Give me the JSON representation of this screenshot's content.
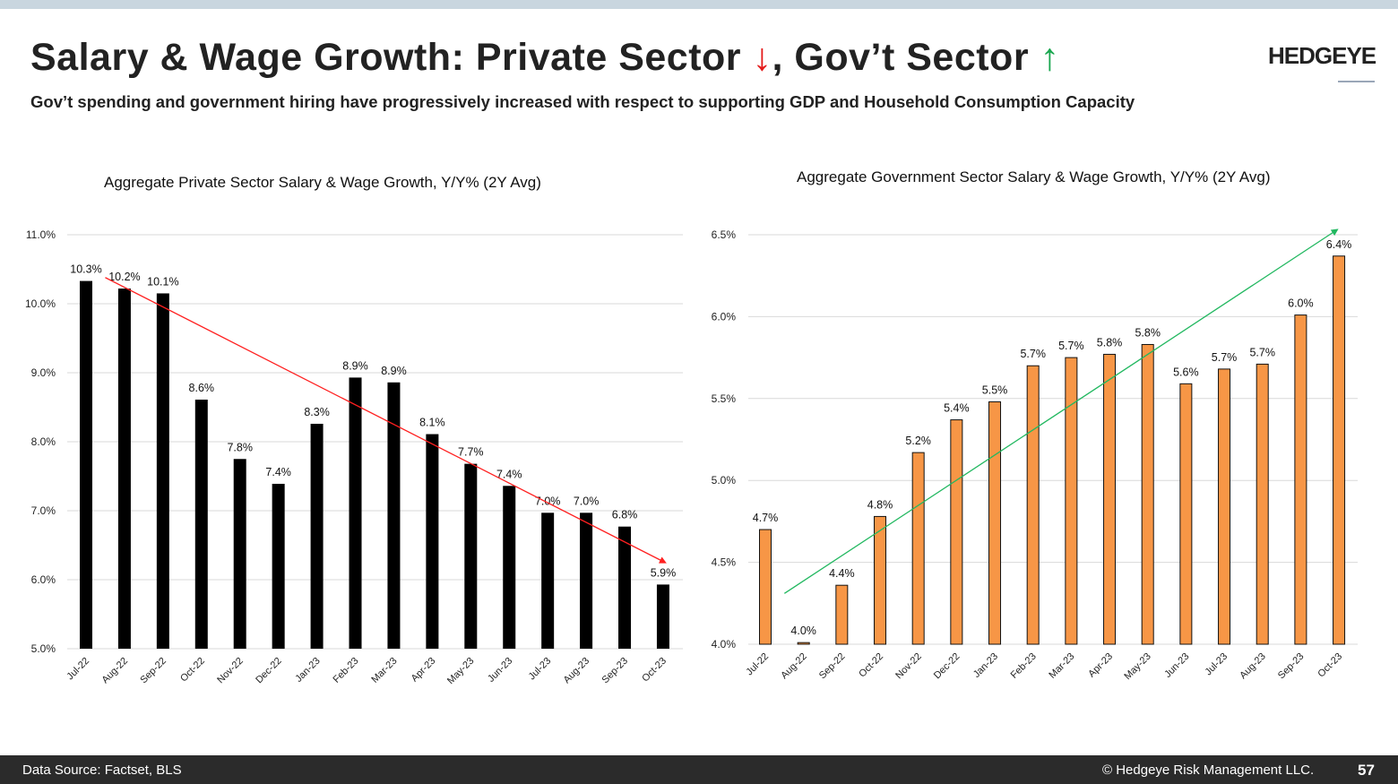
{
  "header": {
    "title_a": "Salary & Wage Growth: Private Sector ",
    "arrow_down": "↓",
    "title_b": ", Gov’t Sector ",
    "arrow_up": "↑",
    "subtitle": "Gov’t spending and government hiring have progressively increased with respect to supporting GDP and Household Consumption Capacity",
    "logo": "HEDGEYE"
  },
  "footer": {
    "source": "Data Source: Factset, BLS",
    "copyright": "© Hedgeye Risk Management LLC.",
    "page": "57"
  },
  "chart_data": [
    {
      "type": "bar",
      "title": "Aggregate Private Sector Salary & Wage Growth, Y/Y% (2Y Avg)",
      "categories": [
        "Jul-22",
        "Aug-22",
        "Sep-22",
        "Oct-22",
        "Nov-22",
        "Dec-22",
        "Jan-23",
        "Feb-23",
        "Mar-23",
        "Apr-23",
        "May-23",
        "Jun-23",
        "Jul-23",
        "Aug-23",
        "Sep-23",
        "Oct-23"
      ],
      "values": [
        10.33,
        10.22,
        10.15,
        8.61,
        7.75,
        7.39,
        8.26,
        8.93,
        8.86,
        8.11,
        7.68,
        7.36,
        6.97,
        6.97,
        6.77,
        5.93
      ],
      "data_labels": [
        "10.3%",
        "10.2%",
        "10.1%",
        "8.6%",
        "7.8%",
        "7.4%",
        "8.3%",
        "8.9%",
        "8.9%",
        "8.1%",
        "7.7%",
        "7.4%",
        "7.0%",
        "7.0%",
        "6.8%",
        "5.9%"
      ],
      "yticks": [
        "5.0%",
        "6.0%",
        "7.0%",
        "8.0%",
        "9.0%",
        "10.0%",
        "11.0%"
      ],
      "ylim": [
        5,
        11
      ],
      "bar_color": "#000000",
      "trend": {
        "color": "#ff2020",
        "from": [
          0.5,
          10.38
        ],
        "to": [
          15.05,
          6.25
        ]
      },
      "grid": true
    },
    {
      "type": "bar",
      "title": "Aggregate Government Sector Salary & Wage Growth, Y/Y% (2Y Avg)",
      "categories": [
        "Jul-22",
        "Aug-22",
        "Sep-22",
        "Oct-22",
        "Nov-22",
        "Dec-22",
        "Jan-23",
        "Feb-23",
        "Mar-23",
        "Apr-23",
        "May-23",
        "Jun-23",
        "Jul-23",
        "Aug-23",
        "Sep-23",
        "Oct-23"
      ],
      "values": [
        4.7,
        4.01,
        4.36,
        4.78,
        5.17,
        5.37,
        5.48,
        5.7,
        5.75,
        5.77,
        5.83,
        5.59,
        5.68,
        5.71,
        6.01,
        6.37
      ],
      "data_labels": [
        "4.7%",
        "4.0%",
        "4.4%",
        "4.8%",
        "5.2%",
        "5.4%",
        "5.5%",
        "5.7%",
        "5.7%",
        "5.8%",
        "5.8%",
        "5.6%",
        "5.7%",
        "5.7%",
        "6.0%",
        "6.4%"
      ],
      "yticks": [
        "4.0%",
        "4.5%",
        "5.0%",
        "5.5%",
        "6.0%",
        "6.5%"
      ],
      "ylim": [
        4,
        6.5
      ],
      "bar_color": "#f79646",
      "trend": {
        "color": "#22b860",
        "from": [
          0.5,
          4.31
        ],
        "to": [
          14.95,
          6.53
        ]
      },
      "grid": true
    }
  ]
}
